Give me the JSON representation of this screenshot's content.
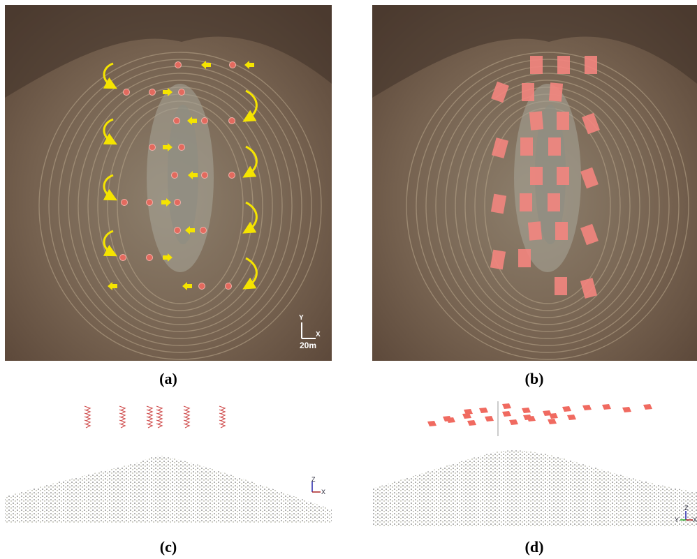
{
  "panels": [
    {
      "label": "(a)",
      "scale_bar": {
        "y_axis": "Y",
        "x_axis": "X",
        "length": "20m"
      }
    },
    {
      "label": "(b)"
    },
    {
      "label": "(c)",
      "axes": {
        "z": "Z",
        "x": "X"
      }
    },
    {
      "label": "(d)",
      "axes": {
        "y": "Y",
        "z": "Z",
        "x": "X"
      }
    }
  ]
}
